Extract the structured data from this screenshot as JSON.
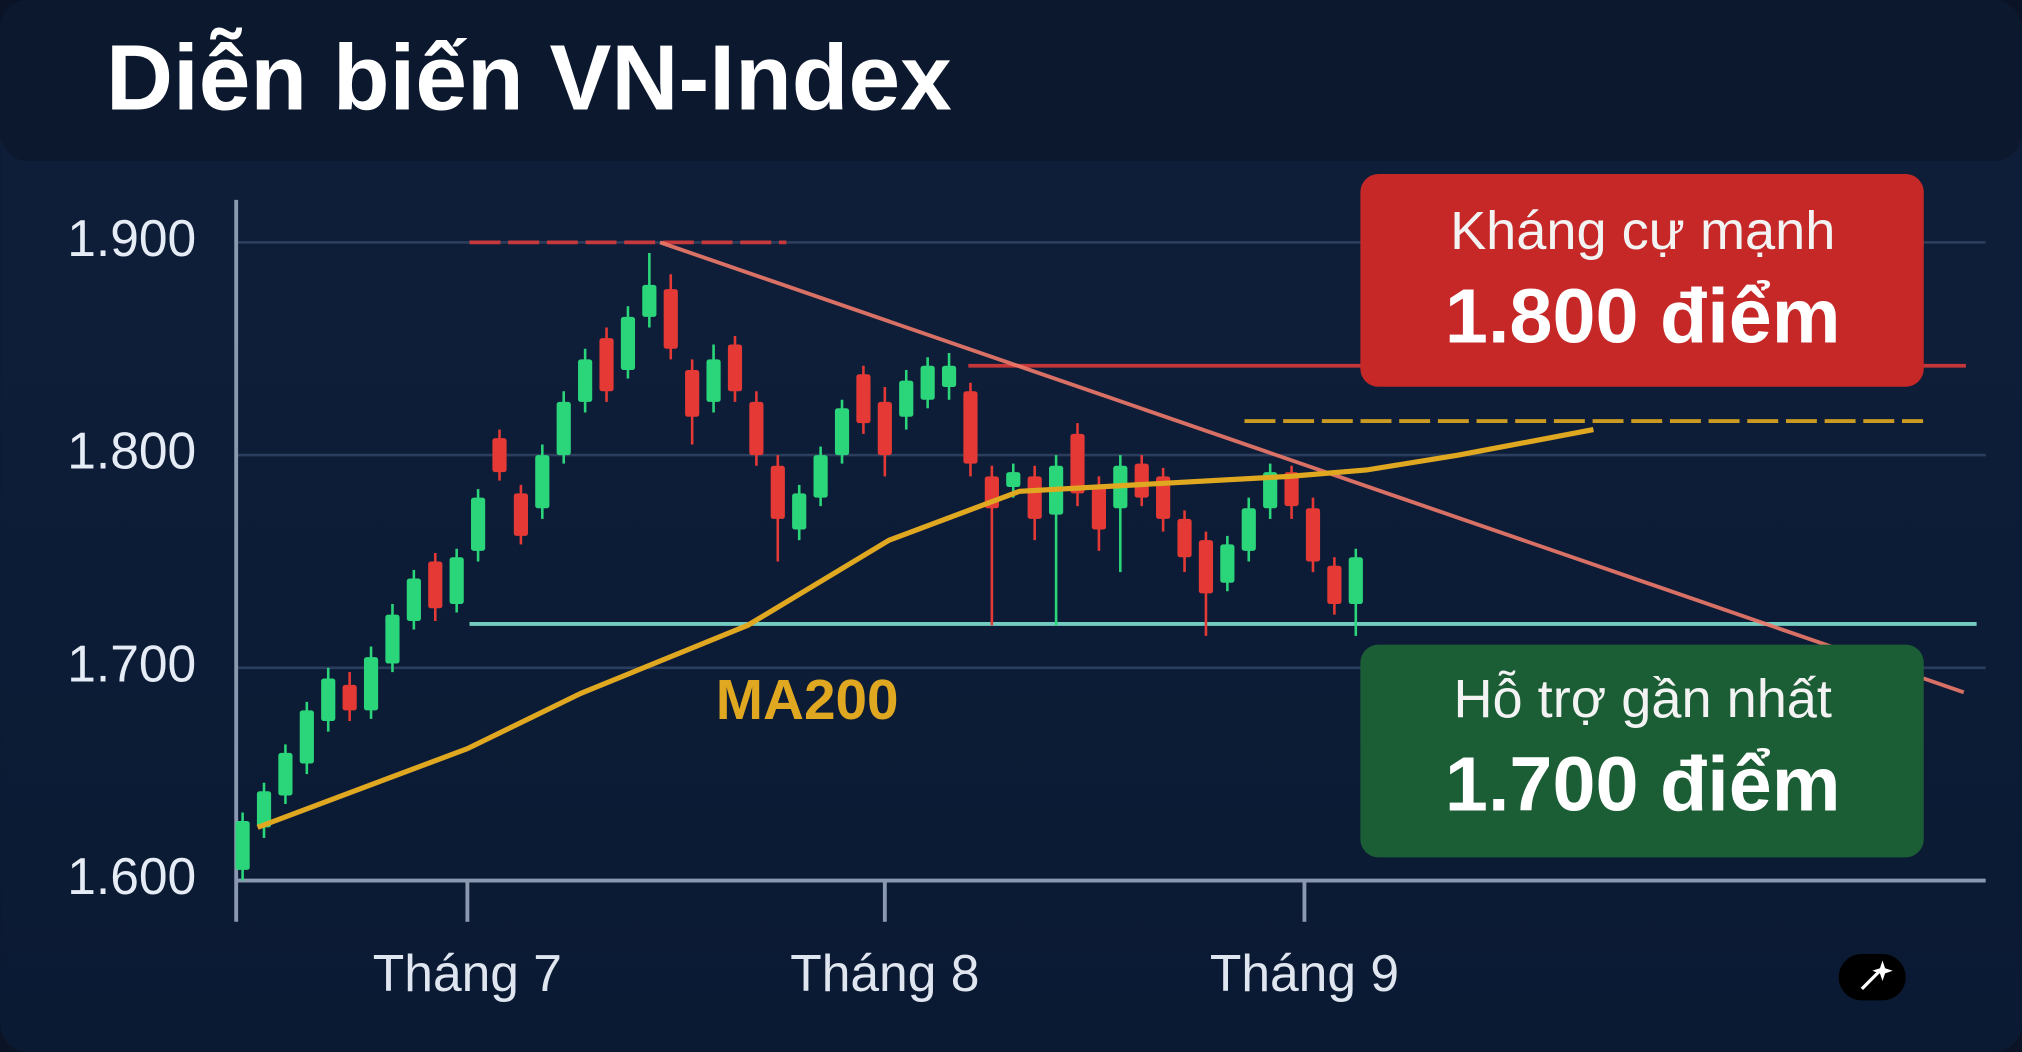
{
  "chart_data": {
    "type": "candlestick",
    "title": "Diễn biến VN-Index",
    "x": [
      0,
      1,
      2,
      3,
      4,
      5,
      6,
      7,
      8,
      9,
      10,
      11,
      12,
      13,
      14,
      15,
      16,
      17,
      18,
      19,
      20,
      21,
      22,
      23,
      24,
      25,
      26,
      27,
      28,
      29,
      30,
      31,
      32,
      33,
      34,
      35,
      36,
      37,
      38,
      39,
      40,
      41,
      42,
      43,
      44,
      45,
      46,
      47,
      48,
      49,
      50,
      51,
      52
    ],
    "open": [
      1605,
      1625,
      1640,
      1655,
      1675,
      1692,
      1680,
      1702,
      1722,
      1750,
      1730,
      1755,
      1808,
      1782,
      1775,
      1800,
      1825,
      1855,
      1840,
      1865,
      1878,
      1840,
      1825,
      1852,
      1825,
      1795,
      1765,
      1780,
      1800,
      1838,
      1825,
      1818,
      1826,
      1832,
      1830,
      1790,
      1785,
      1790,
      1772,
      1810,
      1785,
      1775,
      1796,
      1790,
      1770,
      1760,
      1740,
      1755,
      1775,
      1792,
      1775,
      1748,
      1730
    ],
    "close": [
      1628,
      1642,
      1660,
      1680,
      1695,
      1680,
      1705,
      1725,
      1742,
      1728,
      1752,
      1780,
      1792,
      1762,
      1800,
      1825,
      1845,
      1830,
      1865,
      1880,
      1850,
      1818,
      1845,
      1830,
      1800,
      1770,
      1782,
      1800,
      1822,
      1815,
      1800,
      1835,
      1842,
      1842,
      1796,
      1775,
      1792,
      1770,
      1795,
      1782,
      1765,
      1795,
      1780,
      1770,
      1752,
      1735,
      1758,
      1775,
      1792,
      1776,
      1750,
      1730,
      1752
    ],
    "high": [
      1632,
      1646,
      1664,
      1684,
      1700,
      1698,
      1710,
      1730,
      1746,
      1754,
      1756,
      1784,
      1812,
      1786,
      1805,
      1830,
      1850,
      1860,
      1870,
      1895,
      1885,
      1845,
      1852,
      1856,
      1830,
      1800,
      1786,
      1804,
      1826,
      1842,
      1832,
      1840,
      1846,
      1848,
      1834,
      1795,
      1796,
      1795,
      1800,
      1815,
      1790,
      1800,
      1800,
      1794,
      1774,
      1764,
      1762,
      1780,
      1796,
      1795,
      1780,
      1752,
      1756
    ],
    "low": [
      1600,
      1620,
      1636,
      1650,
      1670,
      1675,
      1676,
      1698,
      1718,
      1722,
      1726,
      1750,
      1788,
      1758,
      1770,
      1796,
      1820,
      1825,
      1836,
      1860,
      1845,
      1805,
      1820,
      1825,
      1795,
      1750,
      1760,
      1776,
      1796,
      1810,
      1790,
      1812,
      1822,
      1826,
      1790,
      1720,
      1780,
      1760,
      1720,
      1776,
      1755,
      1745,
      1776,
      1764,
      1745,
      1715,
      1736,
      1750,
      1770,
      1770,
      1745,
      1725,
      1715
    ],
    "up_color": "#2bd67b",
    "down_color": "#e53935",
    "xlim": [
      -0.3,
      81
    ],
    "xticks": [
      {
        "value": 10.5,
        "label": "Tháng 7"
      },
      {
        "value": 30,
        "label": "Tháng 8"
      },
      {
        "value": 49.6,
        "label": "Tháng 9"
      }
    ],
    "ylim": [
      1600,
      1900
    ],
    "yticks": [
      {
        "value": 1600,
        "label": "1.600"
      },
      {
        "value": 1700,
        "label": "1.700"
      },
      {
        "value": 1800,
        "label": "1.800"
      },
      {
        "value": 1900,
        "label": "1.900"
      }
    ],
    "grid": true,
    "lines": [
      {
        "name": "MA200",
        "color": "#e0a820",
        "x": [
          0.7,
          10.5,
          15.8,
          23.6,
          30.2,
          36.3,
          41.7,
          48.9,
          52.5,
          56.8,
          63.1
        ],
        "values": [
          1625,
          1662,
          1688,
          1720,
          1760,
          1783,
          1786,
          1790,
          1793,
          1800,
          1812
        ]
      }
    ],
    "reference_lines": [
      {
        "color": "#d83a3a",
        "dashed": true,
        "x": [
          10.6,
          25.4
        ],
        "values": [
          1900,
          1900
        ]
      },
      {
        "color": "#d83a3a",
        "dashed": false,
        "x": [
          33.9,
          80.5
        ],
        "values": [
          1842,
          1842
        ]
      },
      {
        "color": "#e0a820",
        "dashed": true,
        "x": [
          46.8,
          78.5
        ],
        "values": [
          1816,
          1816
        ]
      },
      {
        "color": "#7fe0d0",
        "dashed": false,
        "x": [
          10.6,
          81
        ],
        "values": [
          1720.6,
          1720.6
        ]
      },
      {
        "color": "#f07a6a",
        "dashed": false,
        "x": [
          19.5,
          80.4
        ],
        "values": [
          1900,
          1688.5
        ]
      }
    ],
    "callouts": [
      {
        "label": "Kháng cự mạnh",
        "value_label": "1.800 điểm",
        "color": "#c62828"
      },
      {
        "label": "Hỗ trợ gần nhất",
        "value_label": "1.700 điểm",
        "color": "#1b5e35"
      }
    ]
  }
}
